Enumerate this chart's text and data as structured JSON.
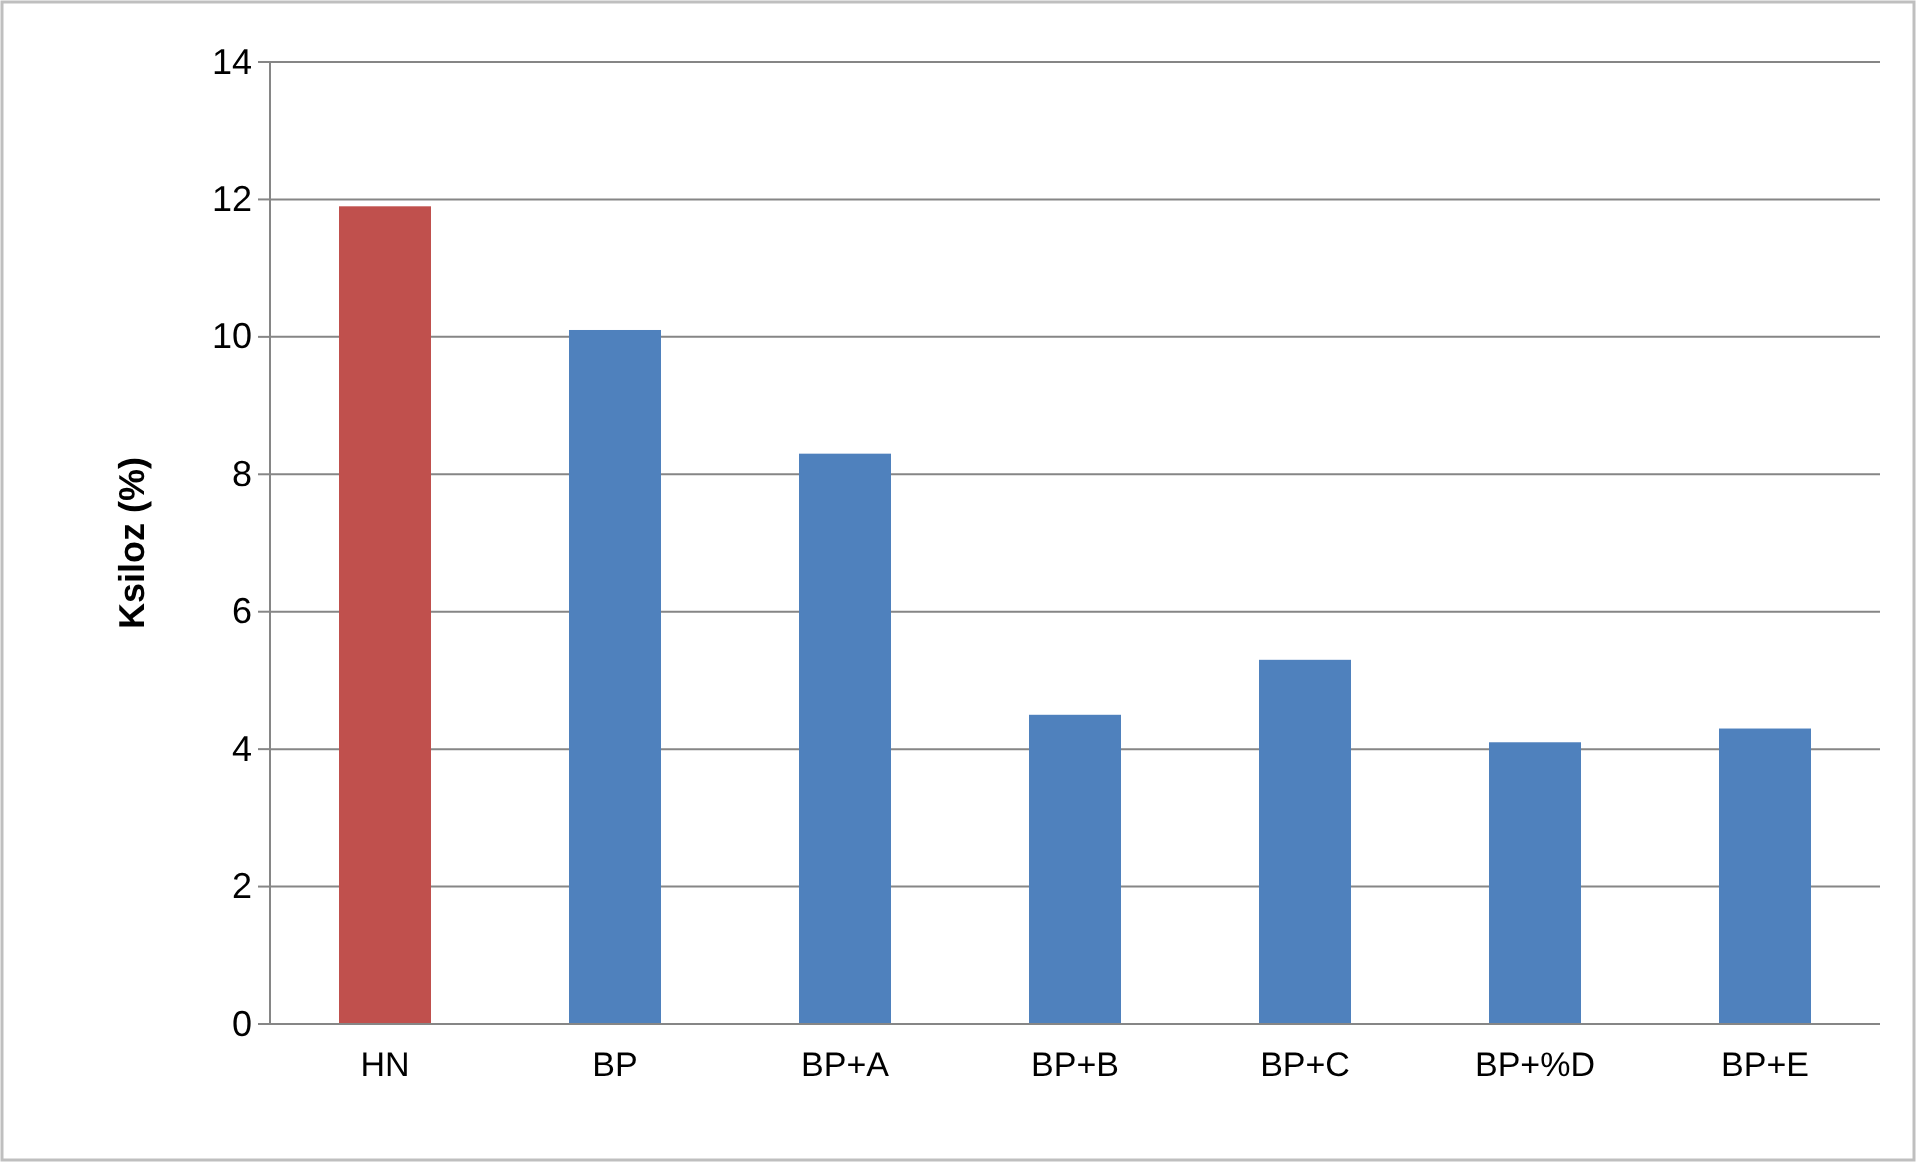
{
  "chart_data": {
    "type": "bar",
    "ylabel": "Ksiloz  (%)",
    "categories": [
      "HN",
      "BP",
      "BP+A",
      "BP+B",
      "BP+C",
      "BP+%D",
      "BP+E"
    ],
    "values": [
      11.9,
      10.1,
      8.3,
      4.5,
      5.3,
      4.1,
      4.3
    ],
    "colors": [
      "#c0504d",
      "#4f81bd",
      "#4f81bd",
      "#4f81bd",
      "#4f81bd",
      "#4f81bd",
      "#4f81bd"
    ],
    "ylim": [
      0,
      14
    ],
    "yticks": [
      0,
      2,
      4,
      6,
      8,
      10,
      12,
      14
    ],
    "grid": "y"
  }
}
